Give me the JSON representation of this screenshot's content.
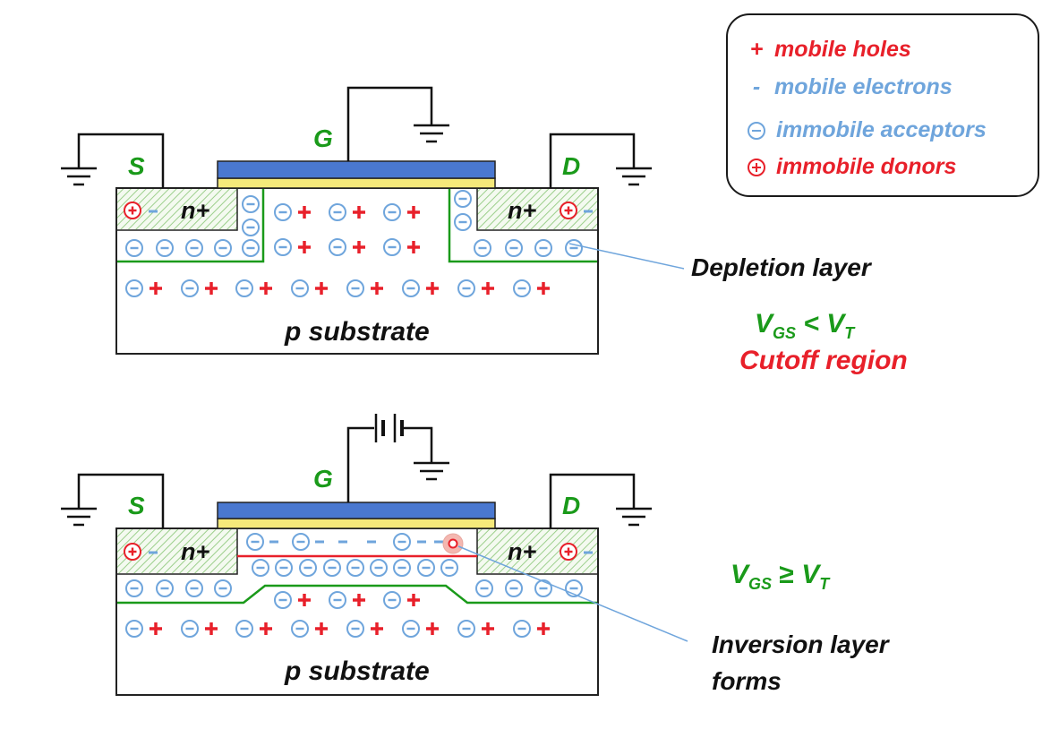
{
  "legend": {
    "mobile_holes_symbol": "+",
    "mobile_holes": "mobile holes",
    "mobile_electrons_symbol": "-",
    "mobile_electrons": "mobile electrons",
    "immobile_acceptors": "immobile acceptors",
    "immobile_donors": "immobile donors"
  },
  "top": {
    "source": "S",
    "gate": "G",
    "drain": "D",
    "n_left": "n+",
    "n_right": "n+",
    "substrate": "p substrate",
    "callout": "Depletion layer",
    "cond_v1": "V",
    "cond_sub1": "GS",
    "cond_op": "<",
    "cond_v2": "V",
    "cond_sub2": "T",
    "region": "Cutoff region"
  },
  "bottom": {
    "source": "S",
    "gate": "G",
    "drain": "D",
    "n_left": "n+",
    "n_right": "n+",
    "substrate": "p substrate",
    "callout_line1": "Inversion layer",
    "callout_line2": "forms",
    "cond_v1": "V",
    "cond_sub1": "GS",
    "cond_op": "≥",
    "cond_v2": "V",
    "cond_sub2": "T"
  },
  "colors": {
    "hole": "#e8202a",
    "electron": "#6fa5dc",
    "acceptor": "#6fa5dc",
    "donor": "#e8202a",
    "green": "#1a9a1a",
    "gate_metal": "#4a78d0",
    "oxide": "#f5e97a",
    "legend_blue": "#6fa5dc"
  }
}
